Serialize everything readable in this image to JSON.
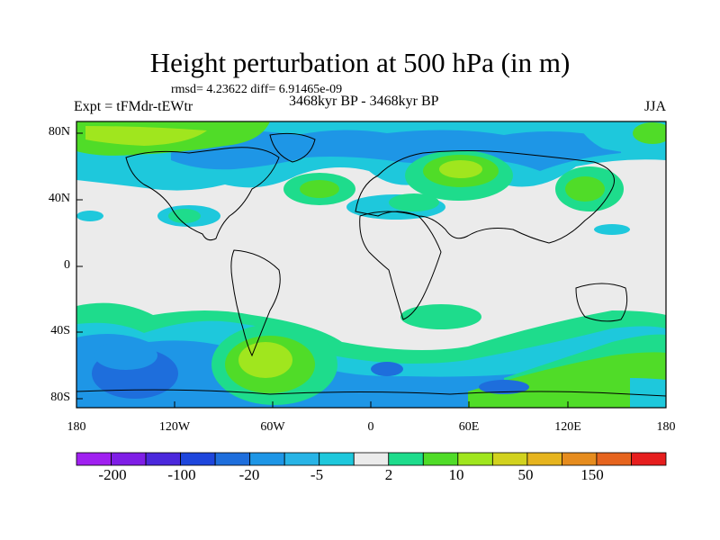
{
  "map": {
    "title": "Height perturbation at 500 hPa (in m)",
    "stats": "rmsd= 4.23622 diff= 6.91465e-09",
    "experiment": "Expt = tFMdr-tEWtr",
    "period": "3468kyr BP - 3468kyr BP",
    "season": "JJA",
    "lat_ticks": [
      "80N",
      "40N",
      "0",
      "40S",
      "80S"
    ],
    "lon_ticks": [
      "180",
      "120W",
      "60W",
      "0",
      "60E",
      "120E",
      "180"
    ]
  },
  "colorbar": {
    "labels": [
      "-200",
      "-100",
      "-20",
      "-5",
      "2",
      "10",
      "50",
      "150"
    ],
    "colors": [
      "#a020f0",
      "#7f1ee6",
      "#4b28dc",
      "#1e46dc",
      "#1e6edc",
      "#1e96e6",
      "#28b4e6",
      "#1ec8dc",
      "#ebebeb",
      "#1edc8c",
      "#50dc28",
      "#a0e61e",
      "#d2d21e",
      "#e6b41e",
      "#e68c1e",
      "#e6641e",
      "#e61e1e"
    ]
  },
  "colors": {
    "cyan": "#1ec8dc",
    "lightblue": "#28b4e6",
    "blue": "#1e96e6",
    "darkblue": "#1e6edc",
    "green": "#1edc8c",
    "lgreen": "#50dc28",
    "yellowgreen": "#a0e61e",
    "neutral": "#ebebeb"
  }
}
